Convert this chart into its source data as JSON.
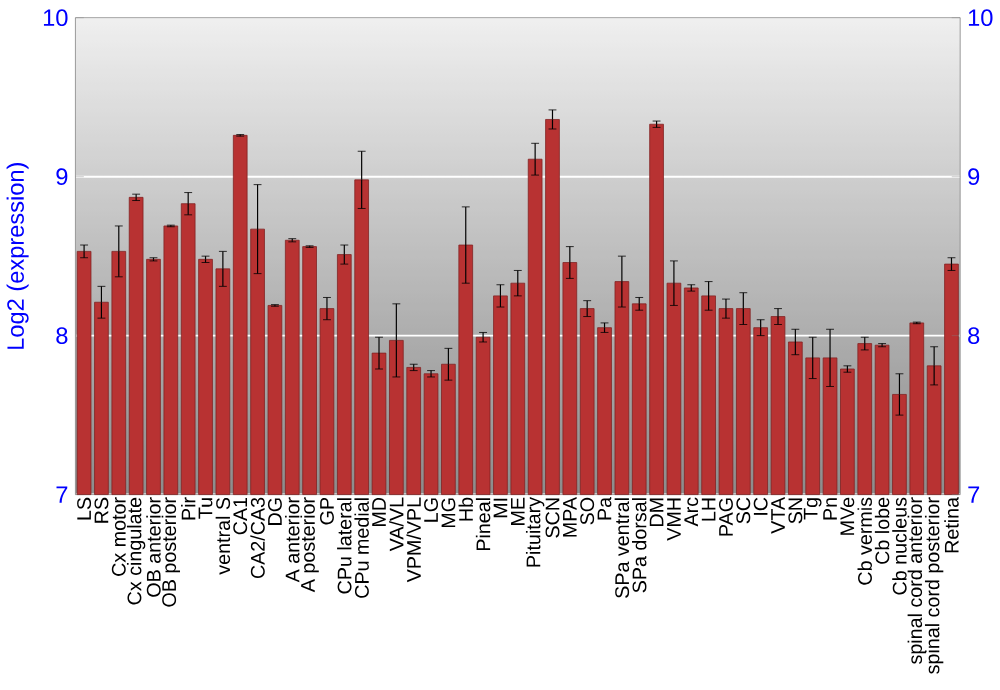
{
  "chart_data": {
    "type": "bar",
    "ylabel": "Log2 (expression)",
    "categories": [
      "LS",
      "RS",
      "Cx motor",
      "Cx cingulate",
      "OB anterior",
      "OB posterior",
      "Pir",
      "Tu",
      "ventral S",
      "CA1",
      "CA2/CA3",
      "DG",
      "A anterior",
      "A posterior",
      "GP",
      "CPu lateral",
      "CPu medial",
      "MD",
      "VA/VL",
      "VPM/VPL",
      "LG",
      "MG",
      "Hb",
      "Pineal",
      "MI",
      "ME",
      "Pituitary",
      "SCN",
      "MPA",
      "SO",
      "Pa",
      "SPa ventral",
      "SPa dorsal",
      "DM",
      "VMH",
      "Arc",
      "LH",
      "PAG",
      "SC",
      "IC",
      "VTA",
      "SN",
      "Tg",
      "Pn",
      "MVe",
      "Cb vermis",
      "Cb lobe",
      "Cb nucleus",
      "spinal cord anterior",
      "spinal cord posterior",
      "Retina"
    ],
    "values": [
      8.53,
      8.21,
      8.53,
      8.87,
      8.48,
      8.69,
      8.83,
      8.48,
      8.42,
      9.26,
      8.67,
      8.19,
      8.6,
      8.56,
      8.17,
      8.51,
      8.98,
      7.89,
      7.97,
      7.8,
      7.76,
      7.82,
      8.57,
      7.99,
      8.25,
      8.33,
      9.11,
      9.36,
      8.46,
      8.17,
      8.05,
      8.34,
      8.2,
      9.33,
      8.33,
      8.3,
      8.25,
      8.17,
      8.17,
      8.05,
      8.12,
      7.96,
      7.86,
      7.86,
      7.79,
      7.95,
      7.94,
      7.63,
      8.08,
      7.81,
      8.45
    ],
    "errors": [
      0.04,
      0.1,
      0.16,
      0.02,
      0.01,
      0.005,
      0.07,
      0.02,
      0.11,
      0.005,
      0.28,
      0.005,
      0.01,
      0.005,
      0.07,
      0.06,
      0.18,
      0.1,
      0.23,
      0.02,
      0.02,
      0.1,
      0.24,
      0.03,
      0.07,
      0.08,
      0.1,
      0.06,
      0.1,
      0.05,
      0.03,
      0.16,
      0.04,
      0.02,
      0.14,
      0.02,
      0.09,
      0.06,
      0.1,
      0.05,
      0.05,
      0.08,
      0.13,
      0.18,
      0.02,
      0.04,
      0.01,
      0.13,
      0.005,
      0.12,
      0.04
    ],
    "color": "#b83232",
    "ylim": [
      7,
      10
    ],
    "yticks": [
      7,
      8,
      9,
      10
    ],
    "y2lim": [
      7,
      10
    ],
    "y2ticks": [
      7,
      8,
      9,
      10
    ],
    "grid": "y"
  }
}
